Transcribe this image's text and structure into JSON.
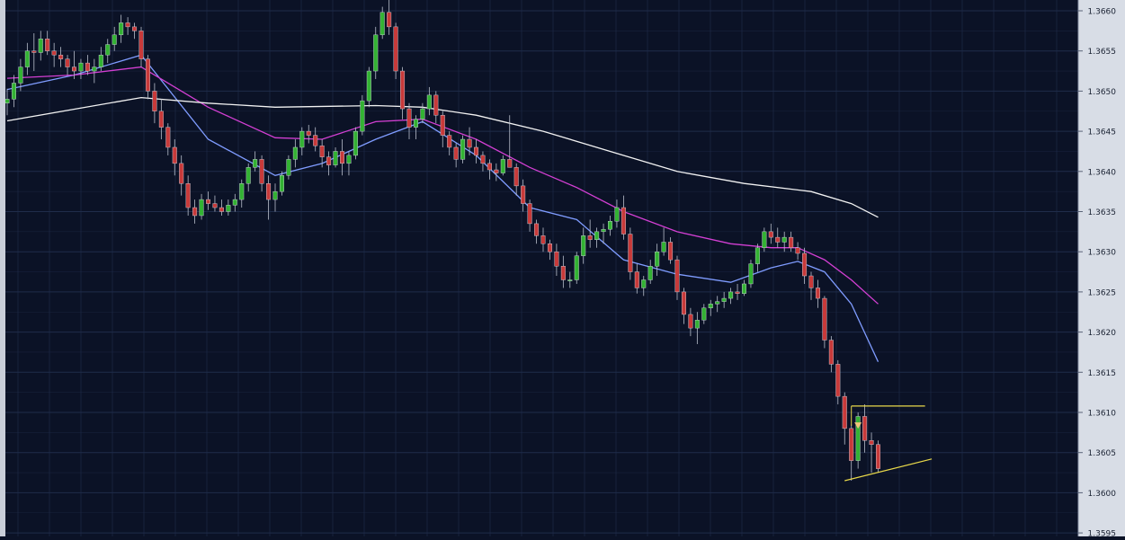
{
  "chart_data": {
    "type": "candlestick",
    "instrument": "",
    "y_axis": {
      "position": "right",
      "ylim": [
        1.3595,
        1.3661
      ],
      "ticks": [
        "1.3660",
        "1.3655",
        "1.3650",
        "1.3645",
        "1.3640",
        "1.3635",
        "1.3630",
        "1.3625",
        "1.3620",
        "1.3615",
        "1.3610",
        "1.3605",
        "1.3600",
        "1.3595"
      ]
    },
    "grid": true,
    "colors": {
      "background": "#0b1226",
      "grid": "#1f2c4a",
      "axis_panel": "#d8dde6",
      "up_candle": "#33b233",
      "down_candle": "#c83a3a",
      "ma_fast": "#7f9cff",
      "ma_medium": "#d33fd3",
      "ma_slow": "#f2f2f2",
      "annotation": "#e8d84a",
      "arrow_marker": "#f0c67a"
    },
    "candles": [
      [
        1.36485,
        1.36503,
        1.3647,
        1.3649
      ],
      [
        1.3649,
        1.3652,
        1.3648,
        1.3651
      ],
      [
        1.3651,
        1.3654,
        1.365,
        1.3653
      ],
      [
        1.3653,
        1.3656,
        1.3652,
        1.3655
      ],
      [
        1.3655,
        1.36572,
        1.36525,
        1.36548
      ],
      [
        1.36548,
        1.36575,
        1.36538,
        1.36565
      ],
      [
        1.36565,
        1.36575,
        1.36545,
        1.3655
      ],
      [
        1.3655,
        1.3656,
        1.3653,
        1.36545
      ],
      [
        1.36545,
        1.36555,
        1.3653,
        1.3654
      ],
      [
        1.3654,
        1.36545,
        1.3652,
        1.3653
      ],
      [
        1.3653,
        1.3655,
        1.36515,
        1.36525
      ],
      [
        1.36525,
        1.3654,
        1.36515,
        1.36535
      ],
      [
        1.36535,
        1.36545,
        1.3652,
        1.36525
      ],
      [
        1.36525,
        1.3654,
        1.3651,
        1.3653
      ],
      [
        1.3653,
        1.36555,
        1.36525,
        1.36545
      ],
      [
        1.36545,
        1.36565,
        1.36535,
        1.36558
      ],
      [
        1.36558,
        1.3658,
        1.3655,
        1.3657
      ],
      [
        1.3657,
        1.36595,
        1.3656,
        1.36585
      ],
      [
        1.36585,
        1.36592,
        1.3657,
        1.3658
      ],
      [
        1.3658,
        1.36585,
        1.36565,
        1.36575
      ],
      [
        1.36575,
        1.3658,
        1.3653,
        1.3654
      ],
      [
        1.3654,
        1.36545,
        1.3649,
        1.365
      ],
      [
        1.365,
        1.3651,
        1.3646,
        1.36475
      ],
      [
        1.36475,
        1.3649,
        1.3644,
        1.36455
      ],
      [
        1.36455,
        1.3646,
        1.3642,
        1.3643
      ],
      [
        1.3643,
        1.3644,
        1.36395,
        1.3641
      ],
      [
        1.3641,
        1.3642,
        1.3637,
        1.36385
      ],
      [
        1.36385,
        1.36395,
        1.36345,
        1.36355
      ],
      [
        1.36355,
        1.36365,
        1.36335,
        1.36345
      ],
      [
        1.36345,
        1.36372,
        1.3634,
        1.36365
      ],
      [
        1.36365,
        1.36375,
        1.36352,
        1.3636
      ],
      [
        1.3636,
        1.3637,
        1.3635,
        1.36355
      ],
      [
        1.36355,
        1.36365,
        1.36345,
        1.3635
      ],
      [
        1.3635,
        1.36365,
        1.36345,
        1.36358
      ],
      [
        1.36358,
        1.36372,
        1.3635,
        1.36365
      ],
      [
        1.36365,
        1.3639,
        1.36355,
        1.36385
      ],
      [
        1.36385,
        1.3641,
        1.36375,
        1.36405
      ],
      [
        1.36405,
        1.36425,
        1.364,
        1.36415
      ],
      [
        1.36415,
        1.3642,
        1.36375,
        1.36385
      ],
      [
        1.36385,
        1.36395,
        1.3634,
        1.36365
      ],
      [
        1.36365,
        1.36385,
        1.3635,
        1.36375
      ],
      [
        1.36375,
        1.364,
        1.3637,
        1.36395
      ],
      [
        1.36395,
        1.3642,
        1.3639,
        1.36415
      ],
      [
        1.36415,
        1.3644,
        1.36405,
        1.3643
      ],
      [
        1.3643,
        1.36455,
        1.3642,
        1.3645
      ],
      [
        1.3645,
        1.36458,
        1.36435,
        1.36445
      ],
      [
        1.36445,
        1.36455,
        1.36425,
        1.36432
      ],
      [
        1.36432,
        1.3644,
        1.36405,
        1.36418
      ],
      [
        1.36418,
        1.36425,
        1.36395,
        1.36408
      ],
      [
        1.36408,
        1.3643,
        1.36405,
        1.36425
      ],
      [
        1.36425,
        1.3644,
        1.36395,
        1.3641
      ],
      [
        1.3641,
        1.36425,
        1.36395,
        1.3642
      ],
      [
        1.3642,
        1.36455,
        1.36415,
        1.3645
      ],
      [
        1.3645,
        1.36495,
        1.36445,
        1.36488
      ],
      [
        1.36488,
        1.3653,
        1.3648,
        1.36525
      ],
      [
        1.36525,
        1.3658,
        1.36515,
        1.3657
      ],
      [
        1.3657,
        1.36605,
        1.36565,
        1.36598
      ],
      [
        1.36598,
        1.36615,
        1.3657,
        1.3658
      ],
      [
        1.3658,
        1.36585,
        1.36515,
        1.36525
      ],
      [
        1.36525,
        1.3653,
        1.36465,
        1.36478
      ],
      [
        1.36478,
        1.36485,
        1.3644,
        1.36455
      ],
      [
        1.36455,
        1.3647,
        1.3644,
        1.36465
      ],
      [
        1.36465,
        1.36485,
        1.3646,
        1.36478
      ],
      [
        1.36478,
        1.36505,
        1.3647,
        1.36495
      ],
      [
        1.36495,
        1.365,
        1.3646,
        1.3647
      ],
      [
        1.3647,
        1.36475,
        1.3643,
        1.36445
      ],
      [
        1.36445,
        1.3645,
        1.3642,
        1.3643
      ],
      [
        1.3643,
        1.36435,
        1.36405,
        1.36415
      ],
      [
        1.36415,
        1.36445,
        1.3641,
        1.3644
      ],
      [
        1.3644,
        1.36455,
        1.3642,
        1.3643
      ],
      [
        1.3643,
        1.3644,
        1.3641,
        1.3642
      ],
      [
        1.3642,
        1.36425,
        1.364,
        1.3641
      ],
      [
        1.3641,
        1.36415,
        1.3639,
        1.36402
      ],
      [
        1.36402,
        1.3641,
        1.36388,
        1.36398
      ],
      [
        1.36398,
        1.3642,
        1.36395,
        1.36415
      ],
      [
        1.36415,
        1.3647,
        1.36405,
        1.36405
      ],
      [
        1.36405,
        1.3641,
        1.3637,
        1.36382
      ],
      [
        1.36382,
        1.3639,
        1.3635,
        1.3636
      ],
      [
        1.3636,
        1.36365,
        1.36325,
        1.36335
      ],
      [
        1.36335,
        1.3634,
        1.3631,
        1.3632
      ],
      [
        1.3632,
        1.3633,
        1.363,
        1.3631
      ],
      [
        1.3631,
        1.36315,
        1.3629,
        1.363
      ],
      [
        1.363,
        1.3631,
        1.3627,
        1.36282
      ],
      [
        1.36282,
        1.36295,
        1.36255,
        1.36265
      ],
      [
        1.36265,
        1.36275,
        1.36255,
        1.36265
      ],
      [
        1.36265,
        1.363,
        1.3626,
        1.36295
      ],
      [
        1.36295,
        1.3633,
        1.36285,
        1.3632
      ],
      [
        1.3632,
        1.3634,
        1.36305,
        1.36315
      ],
      [
        1.36315,
        1.3633,
        1.36305,
        1.36325
      ],
      [
        1.36325,
        1.36335,
        1.3631,
        1.36328
      ],
      [
        1.36328,
        1.36345,
        1.3632,
        1.36338
      ],
      [
        1.36338,
        1.36365,
        1.3633,
        1.36355
      ],
      [
        1.36355,
        1.3637,
        1.36315,
        1.36322
      ],
      [
        1.36322,
        1.3633,
        1.36265,
        1.36275
      ],
      [
        1.36275,
        1.36285,
        1.36248,
        1.36255
      ],
      [
        1.36255,
        1.3627,
        1.36245,
        1.36265
      ],
      [
        1.36265,
        1.3629,
        1.3626,
        1.36282
      ],
      [
        1.36282,
        1.3631,
        1.3627,
        1.363
      ],
      [
        1.363,
        1.3633,
        1.36295,
        1.36312
      ],
      [
        1.36312,
        1.36318,
        1.36285,
        1.3629
      ],
      [
        1.3629,
        1.36295,
        1.3624,
        1.3625
      ],
      [
        1.3625,
        1.36255,
        1.3621,
        1.36222
      ],
      [
        1.36222,
        1.3623,
        1.36195,
        1.36205
      ],
      [
        1.36205,
        1.36225,
        1.36185,
        1.36215
      ],
      [
        1.36215,
        1.36235,
        1.3621,
        1.3623
      ],
      [
        1.3623,
        1.3624,
        1.3622,
        1.36235
      ],
      [
        1.36235,
        1.36245,
        1.36225,
        1.36238
      ],
      [
        1.36238,
        1.3625,
        1.3623,
        1.36242
      ],
      [
        1.36242,
        1.36255,
        1.36235,
        1.3625
      ],
      [
        1.3625,
        1.3626,
        1.3624,
        1.36248
      ],
      [
        1.36248,
        1.36265,
        1.36245,
        1.3626
      ],
      [
        1.3626,
        1.3629,
        1.36255,
        1.36285
      ],
      [
        1.36285,
        1.3631,
        1.36275,
        1.36305
      ],
      [
        1.36305,
        1.3633,
        1.363,
        1.36325
      ],
      [
        1.36325,
        1.36335,
        1.3631,
        1.36318
      ],
      [
        1.36318,
        1.3633,
        1.36305,
        1.36312
      ],
      [
        1.36312,
        1.36325,
        1.363,
        1.36318
      ],
      [
        1.36318,
        1.36325,
        1.363,
        1.36305
      ],
      [
        1.36305,
        1.36312,
        1.3629,
        1.36298
      ],
      [
        1.36298,
        1.36305,
        1.3626,
        1.3627
      ],
      [
        1.3627,
        1.36275,
        1.3624,
        1.36255
      ],
      [
        1.36255,
        1.36265,
        1.3623,
        1.36242
      ],
      [
        1.36242,
        1.36245,
        1.3618,
        1.3619
      ],
      [
        1.3619,
        1.36195,
        1.3615,
        1.3616
      ],
      [
        1.3616,
        1.36165,
        1.3611,
        1.3612
      ],
      [
        1.3612,
        1.36125,
        1.3606,
        1.3608
      ],
      [
        1.3608,
        1.36085,
        1.36015,
        1.3604
      ],
      [
        1.3604,
        1.361,
        1.3603,
        1.36095
      ],
      [
        1.36095,
        1.3611,
        1.3605,
        1.36065
      ],
      [
        1.36065,
        1.36075,
        1.36025,
        1.3606
      ],
      [
        1.3606,
        1.36065,
        1.36025,
        1.3603
      ]
    ],
    "moving_averages": {
      "fast": [
        [
          0,
          1.36502
        ],
        [
          10,
          1.3652
        ],
        [
          20,
          1.36545
        ],
        [
          30,
          1.3644
        ],
        [
          40,
          1.36395
        ],
        [
          47,
          1.3641
        ],
        [
          55,
          1.3644
        ],
        [
          62,
          1.36462
        ],
        [
          70,
          1.3642
        ],
        [
          78,
          1.36355
        ],
        [
          85,
          1.3634
        ],
        [
          92,
          1.3629
        ],
        [
          100,
          1.36272
        ],
        [
          108,
          1.36262
        ],
        [
          114,
          1.3628
        ],
        [
          118,
          1.36288
        ],
        [
          122,
          1.36275
        ],
        [
          126,
          1.36235
        ],
        [
          130,
          1.36163
        ]
      ],
      "medium": [
        [
          0,
          1.36516
        ],
        [
          10,
          1.3652
        ],
        [
          20,
          1.3653
        ],
        [
          30,
          1.3648
        ],
        [
          40,
          1.36442
        ],
        [
          47,
          1.3644
        ],
        [
          55,
          1.36462
        ],
        [
          62,
          1.36465
        ],
        [
          70,
          1.3644
        ],
        [
          78,
          1.36405
        ],
        [
          85,
          1.3638
        ],
        [
          92,
          1.3635
        ],
        [
          100,
          1.36325
        ],
        [
          108,
          1.3631
        ],
        [
          114,
          1.36305
        ],
        [
          118,
          1.36305
        ],
        [
          122,
          1.3629
        ],
        [
          126,
          1.36265
        ],
        [
          130,
          1.36235
        ]
      ],
      "slow": [
        [
          0,
          1.36463
        ],
        [
          20,
          1.36492
        ],
        [
          30,
          1.36485
        ],
        [
          40,
          1.3648
        ],
        [
          55,
          1.36482
        ],
        [
          62,
          1.3648
        ],
        [
          70,
          1.3647
        ],
        [
          80,
          1.3645
        ],
        [
          90,
          1.36425
        ],
        [
          100,
          1.364
        ],
        [
          110,
          1.36385
        ],
        [
          120,
          1.36375
        ],
        [
          126,
          1.3636
        ],
        [
          130,
          1.36343
        ]
      ]
    },
    "annotations": {
      "horizontal_line": {
        "price": 1.36108,
        "from_candle": 126,
        "to_candle": 137
      },
      "trend_line": {
        "from": [
          125,
          1.36015
        ],
        "to": [
          138,
          1.36042
        ]
      },
      "arrow_marker": {
        "candle": 127,
        "price": 1.36082
      }
    }
  }
}
